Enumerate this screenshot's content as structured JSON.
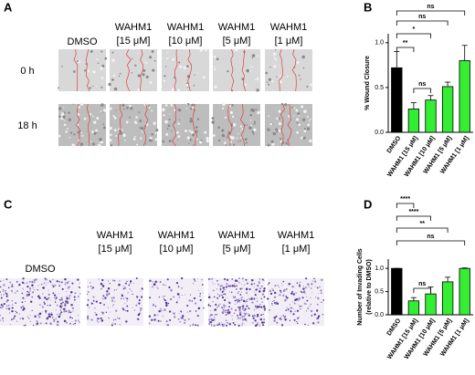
{
  "panel_labels": [
    "A",
    "B",
    "C",
    "D"
  ],
  "panel_a": {
    "columns": [
      [
        "DMSO"
      ],
      [
        "WAHM1",
        "[15 μM]"
      ],
      [
        "WAHM1",
        "[10 μM]"
      ],
      [
        "WAHM1",
        "[5 μM]"
      ],
      [
        "WAHM1",
        "[1 μM]"
      ]
    ],
    "rows": [
      "0 h",
      "18 h"
    ]
  },
  "panel_c": {
    "columns": [
      [
        "DMSO"
      ],
      [
        "WAHM1",
        "[15 μM]"
      ],
      [
        "WAHM1",
        "[10 μM]"
      ],
      [
        "WAHM1",
        "[5 μM]"
      ],
      [
        "WAHM1",
        "[1 μM]"
      ]
    ]
  },
  "chart_data": [
    {
      "type": "bar",
      "y_label": "% Wound Closure",
      "categories": [
        "DMSO",
        "WAHM1 [15 μM]",
        "WAHM1 [10 μM]",
        "WAHM1 [5 μM]",
        "WAHM1 [1 μM]"
      ],
      "values": [
        0.72,
        0.26,
        0.36,
        0.51,
        0.8
      ],
      "errors": [
        0.18,
        0.07,
        0.05,
        0.05,
        0.17
      ],
      "colors": [
        "#000000",
        "#33ee33",
        "#33ee33",
        "#33ee33",
        "#33ee33"
      ],
      "ylim": [
        0,
        1.1
      ],
      "yticks": [
        {
          "value": 0,
          "label": "0.0"
        },
        {
          "value": 0.5,
          "label": "0.5"
        },
        {
          "value": 1,
          "label": "1.0"
        }
      ],
      "annotations": [
        "ns",
        "ns",
        "*",
        "**",
        "ns"
      ]
    },
    {
      "type": "bar",
      "y_label": [
        "Number of Invading Cells",
        "(relative to DMSO)"
      ],
      "categories": [
        "DMSO",
        "WAHM1 [15 μM]",
        "WAHM1 [10 μM]",
        "WAHM1 [5 μM]",
        "WAHM1 [1 μM]"
      ],
      "values": [
        1.0,
        0.3,
        0.45,
        0.71,
        1.0
      ],
      "errors": [
        0,
        0.07,
        0.15,
        0.1,
        0.01
      ],
      "colors": [
        "#000000",
        "#33ee33",
        "#33ee33",
        "#33ee33",
        "#33ee33"
      ],
      "ylim": [
        0,
        1.2
      ],
      "yticks": [
        {
          "value": 0,
          "label": "0.0"
        },
        {
          "value": 0.5,
          "label": "0.5"
        },
        {
          "value": 1,
          "label": "1.0"
        }
      ],
      "annotations": [
        "ns",
        "**",
        "****",
        "****",
        "ns"
      ]
    }
  ]
}
